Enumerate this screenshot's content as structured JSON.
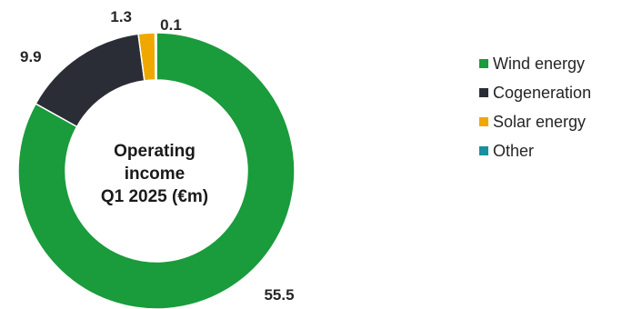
{
  "chart_data": {
    "type": "pie",
    "variant": "donut",
    "center_title": [
      "Operating",
      "income",
      "Q1 2025 (€m)"
    ],
    "categories": [
      "Wind energy",
      "Cogeneration",
      "Solar energy",
      "Other"
    ],
    "values": [
      55.5,
      9.9,
      1.3,
      0.1
    ],
    "value_labels": [
      "55.5",
      "9.9",
      "1.3",
      "0.1"
    ],
    "colors": [
      "#1a9b3c",
      "#2b2d36",
      "#f0a800",
      "#1a8fa0"
    ],
    "legend_position": "right"
  }
}
